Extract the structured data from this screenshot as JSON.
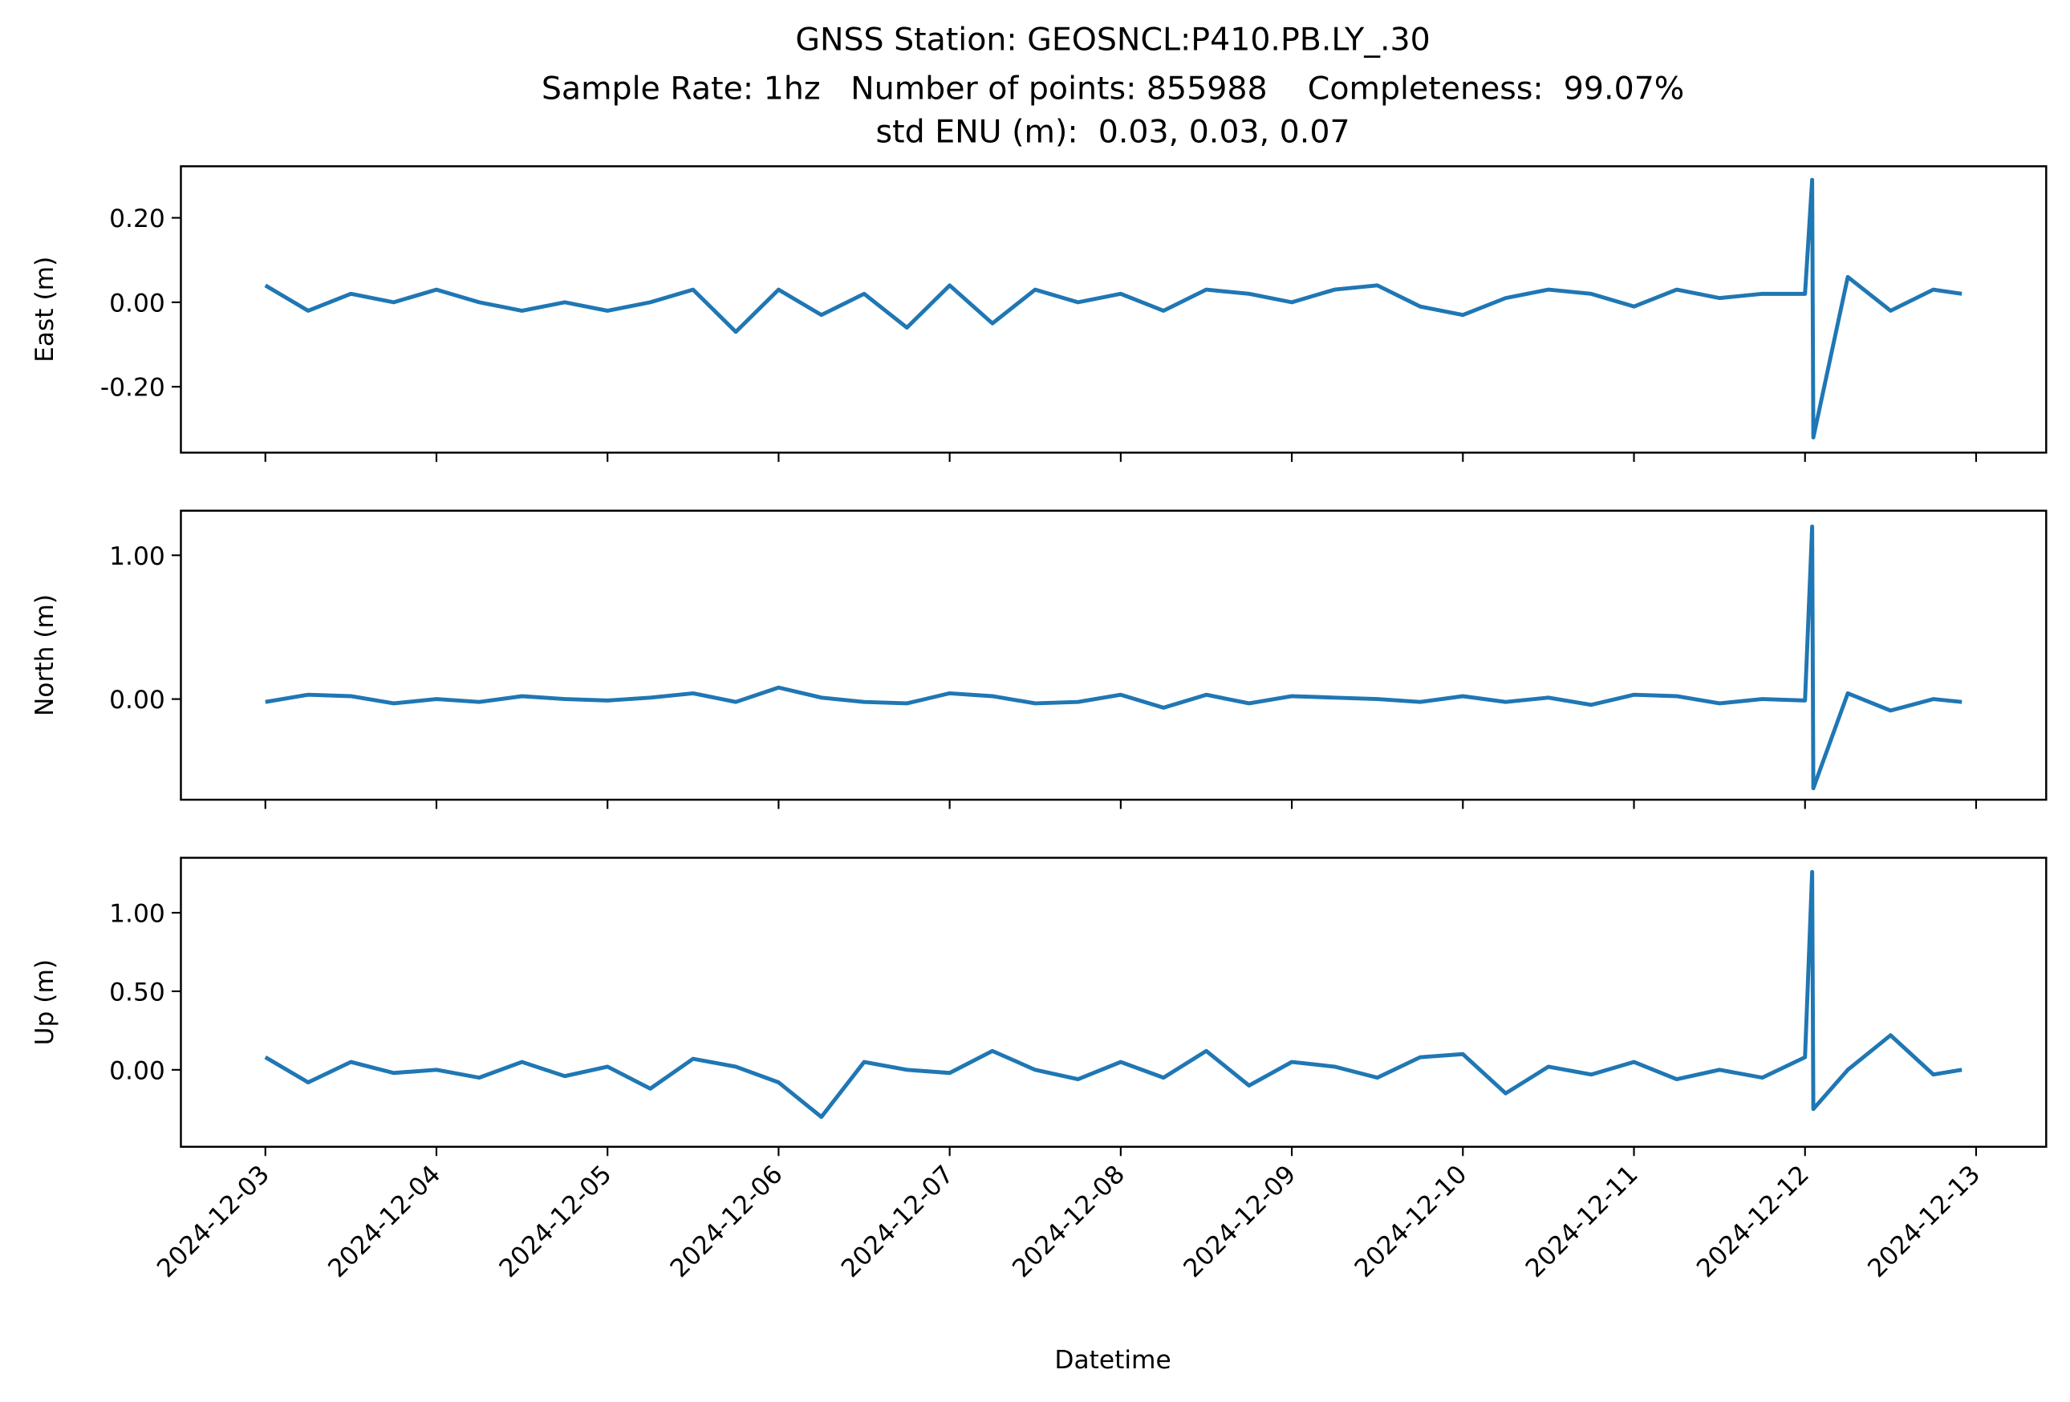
{
  "chart_data": {
    "type": "line",
    "title": "GNSS Station: GEOSNCL:P410.PB.LY_.30",
    "subtitle": [
      "Sample Rate: 1hz   Number of points: 855988    Completeness:  99.07%",
      "std ENU (m):  0.03, 0.03, 0.07"
    ],
    "xlabel": "Datetime",
    "xlim": [
      "2024-12-02T12:09",
      "2024-12-13T09:50"
    ],
    "xticks": [
      "2024-12-03",
      "2024-12-04",
      "2024-12-05",
      "2024-12-06",
      "2024-12-07",
      "2024-12-08",
      "2024-12-09",
      "2024-12-10",
      "2024-12-11",
      "2024-12-12",
      "2024-12-13"
    ],
    "x": [
      "2024-12-03T00:00",
      "2024-12-03T06:00",
      "2024-12-03T12:00",
      "2024-12-03T18:00",
      "2024-12-04T00:00",
      "2024-12-04T06:00",
      "2024-12-04T12:00",
      "2024-12-04T18:00",
      "2024-12-05T00:00",
      "2024-12-05T06:00",
      "2024-12-05T12:00",
      "2024-12-05T18:00",
      "2024-12-06T00:00",
      "2024-12-06T06:00",
      "2024-12-06T12:00",
      "2024-12-06T18:00",
      "2024-12-07T00:00",
      "2024-12-07T06:00",
      "2024-12-07T12:00",
      "2024-12-07T18:00",
      "2024-12-08T00:00",
      "2024-12-08T06:00",
      "2024-12-08T12:00",
      "2024-12-08T18:00",
      "2024-12-09T00:00",
      "2024-12-09T06:00",
      "2024-12-09T12:00",
      "2024-12-09T18:00",
      "2024-12-10T00:00",
      "2024-12-10T06:00",
      "2024-12-10T12:00",
      "2024-12-10T18:00",
      "2024-12-11T00:00",
      "2024-12-11T06:00",
      "2024-12-11T12:00",
      "2024-12-11T18:00",
      "2024-12-12T00:00",
      "2024-12-12T01:00",
      "2024-12-12T01:10",
      "2024-12-12T06:00",
      "2024-12-12T12:00",
      "2024-12-12T18:00",
      "2024-12-12T22:00"
    ],
    "color": "#1f77b4",
    "panels": [
      {
        "ylabel": "East (m)",
        "ylim": [
          -0.356,
          0.322
        ],
        "yticks": [
          {
            "value": 0.2,
            "label": "0.20"
          },
          {
            "value": 0,
            "label": "0.00"
          },
          {
            "value": -0.2,
            "label": "-0.20"
          }
        ],
        "values": [
          0.04,
          -0.02,
          0.02,
          0.0,
          0.03,
          0.0,
          -0.02,
          0.0,
          -0.02,
          0.0,
          0.03,
          -0.07,
          0.03,
          -0.03,
          0.02,
          -0.06,
          0.04,
          -0.05,
          0.03,
          0.0,
          0.02,
          -0.02,
          0.03,
          0.02,
          0.0,
          0.03,
          0.04,
          -0.01,
          -0.03,
          0.01,
          0.03,
          0.02,
          -0.01,
          0.03,
          0.01,
          0.02,
          0.02,
          0.29,
          -0.32,
          0.06,
          -0.02,
          0.03,
          0.02
        ]
      },
      {
        "ylabel": "North (m)",
        "ylim": [
          -0.7,
          1.31
        ],
        "yticks": [
          {
            "value": 1,
            "label": "1.00"
          },
          {
            "value": 0,
            "label": "0.00"
          }
        ],
        "values": [
          -0.02,
          0.03,
          0.02,
          -0.03,
          0.0,
          -0.02,
          0.02,
          0.0,
          -0.01,
          0.01,
          0.04,
          -0.02,
          0.08,
          0.01,
          -0.02,
          -0.03,
          0.04,
          0.02,
          -0.03,
          -0.02,
          0.03,
          -0.06,
          0.03,
          -0.03,
          0.02,
          0.01,
          0.0,
          -0.02,
          0.02,
          -0.02,
          0.01,
          -0.04,
          0.03,
          0.02,
          -0.03,
          0.0,
          -0.01,
          1.2,
          -0.62,
          0.04,
          -0.08,
          0.0,
          -0.02
        ]
      },
      {
        "ylabel": "Up (m)",
        "ylim": [
          -0.49,
          1.35
        ],
        "yticks": [
          {
            "value": 1,
            "label": "1.00"
          },
          {
            "value": 0.5,
            "label": "0.50"
          },
          {
            "value": 0,
            "label": "0.00"
          }
        ],
        "values": [
          0.08,
          -0.08,
          0.05,
          -0.02,
          0.0,
          -0.05,
          0.05,
          -0.04,
          0.02,
          -0.12,
          0.07,
          0.02,
          -0.08,
          -0.3,
          0.05,
          0.0,
          -0.02,
          0.12,
          0.0,
          -0.06,
          0.05,
          -0.05,
          0.12,
          -0.1,
          0.05,
          0.02,
          -0.05,
          0.08,
          0.1,
          -0.15,
          0.02,
          -0.03,
          0.05,
          -0.06,
          0.0,
          -0.05,
          0.08,
          1.26,
          -0.25,
          0.0,
          0.22,
          -0.03,
          0.0
        ]
      }
    ]
  }
}
